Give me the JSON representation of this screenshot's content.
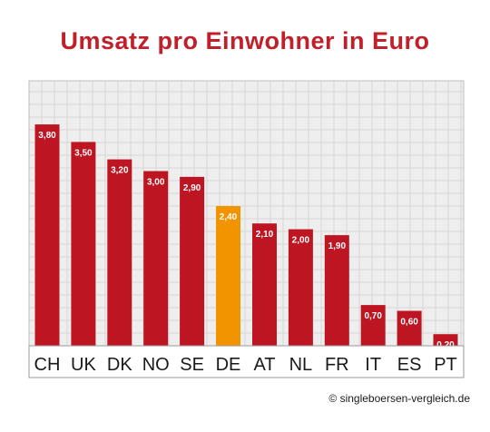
{
  "chart_data": {
    "type": "bar",
    "title": "Umsatz pro Einwohner in Euro",
    "categories": [
      "CH",
      "UK",
      "DK",
      "NO",
      "SE",
      "DE",
      "AT",
      "NL",
      "FR",
      "IT",
      "ES",
      "PT"
    ],
    "values": [
      3.8,
      3.5,
      3.2,
      3.0,
      2.9,
      2.4,
      2.1,
      2.0,
      1.9,
      0.7,
      0.6,
      0.2
    ],
    "value_labels": [
      "3,80",
      "3,50",
      "3,20",
      "3,00",
      "2,90",
      "2,40",
      "2,10",
      "2,00",
      "1,90",
      "0,70",
      "0,60",
      "0,20"
    ],
    "highlight_category": "DE",
    "ylim": [
      0,
      4.55
    ],
    "grid": true,
    "xlabel": "",
    "ylabel": ""
  },
  "colors": {
    "title": "#c0202a",
    "bar": "#bd1622",
    "highlight": "#f29400",
    "plot_background": "#eeeeee",
    "grid": "#d6d6d6"
  },
  "credit": "© singleboersen-vergleich.de"
}
